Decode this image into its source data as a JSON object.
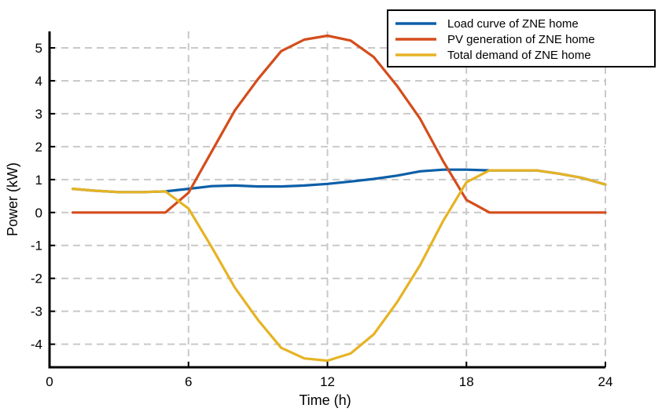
{
  "chart_data": {
    "type": "line",
    "xlabel": "Time (h)",
    "ylabel": "Power (kW)",
    "xlim": [
      0,
      24
    ],
    "ylim": [
      -4.7,
      5.5
    ],
    "xticks": [
      0,
      6,
      12,
      18,
      24
    ],
    "yticks": [
      5,
      4,
      3,
      2,
      1,
      0,
      -1,
      -2,
      -3,
      -4
    ],
    "grid": true,
    "legend_position": "top-right",
    "x": [
      1,
      2,
      3,
      4,
      5,
      6,
      7,
      8,
      9,
      10,
      11,
      12,
      13,
      14,
      15,
      16,
      17,
      18,
      19,
      20,
      21,
      22,
      23,
      24
    ],
    "series": [
      {
        "name": "Load curve of ZNE home",
        "color": "#0b5fa8",
        "values": [
          0.72,
          0.66,
          0.62,
          0.62,
          0.64,
          0.72,
          0.8,
          0.82,
          0.79,
          0.79,
          0.82,
          0.87,
          0.94,
          1.02,
          1.12,
          1.25,
          1.3,
          1.3,
          1.28,
          1.28,
          1.28,
          1.18,
          1.05,
          0.85
        ]
      },
      {
        "name": "PV generation of ZNE home",
        "color": "#d44d1c",
        "values": [
          0,
          0,
          0,
          0,
          0,
          0.6,
          1.85,
          3.1,
          4.05,
          4.9,
          5.25,
          5.37,
          5.22,
          4.72,
          3.85,
          2.85,
          1.55,
          0.38,
          0,
          0,
          0,
          0,
          0,
          0
        ]
      },
      {
        "name": "Total demand of ZNE home",
        "color": "#e6b324",
        "values": [
          0.72,
          0.66,
          0.62,
          0.62,
          0.64,
          0.12,
          -1.05,
          -2.28,
          -3.26,
          -4.11,
          -4.43,
          -4.5,
          -4.28,
          -3.7,
          -2.73,
          -1.6,
          -0.25,
          0.92,
          1.28,
          1.28,
          1.28,
          1.18,
          1.05,
          0.85
        ]
      }
    ]
  }
}
